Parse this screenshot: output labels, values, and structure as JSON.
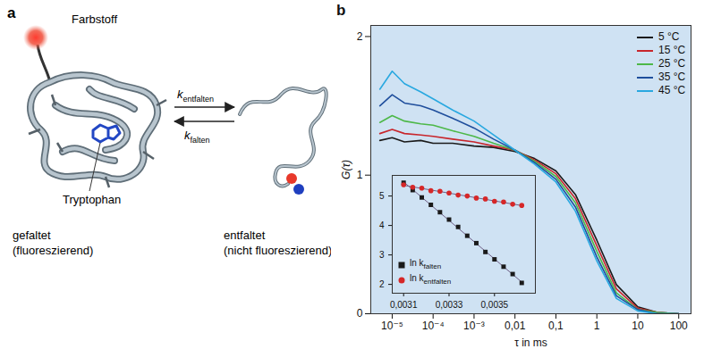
{
  "diagram": {
    "panel_label": "a",
    "dye": "Farbstoff",
    "tryptophan": "Tryptophan",
    "folded": [
      "gefaltet",
      "(fluoreszierend)"
    ],
    "unfolded": [
      "entfaltet",
      "(nicht fluoreszierend)"
    ],
    "rate_unfold": "kentfalten",
    "rate_fold": "kfalten"
  },
  "chart_data": [
    {
      "panel_label": "b",
      "type": "line",
      "x_label": "τ in ms",
      "y_label": "G(τ)",
      "log": "x",
      "xlim": [
        3e-06,
        200
      ],
      "ylim": [
        0,
        2.08
      ],
      "xticks": [
        {
          "value": 1e-05,
          "label": "10⁻⁵"
        },
        {
          "value": 0.0001,
          "label": "10⁻⁴"
        },
        {
          "value": 0.001,
          "label": "10⁻³"
        },
        {
          "value": 0.01,
          "label": "0,01"
        },
        {
          "value": 0.1,
          "label": "0,1"
        },
        1,
        10,
        100
      ],
      "yticks": [
        0,
        1,
        2
      ],
      "legend": "top-right",
      "x": [
        5e-06,
        1e-05,
        2e-05,
        5e-05,
        0.0001,
        0.0003,
        0.001,
        0.003,
        0.01,
        0.03,
        0.1,
        0.3,
        1,
        3,
        10,
        30,
        100
      ],
      "series": [
        {
          "name": "5 °C",
          "color": "#1a1a1a",
          "values": [
            1.25,
            1.27,
            1.24,
            1.25,
            1.23,
            1.23,
            1.21,
            1.2,
            1.17,
            1.12,
            1.03,
            0.86,
            0.53,
            0.21,
            0.05,
            0.01,
            0
          ]
        },
        {
          "name": "15 °C",
          "color": "#c8262c",
          "values": [
            1.3,
            1.33,
            1.3,
            1.29,
            1.28,
            1.26,
            1.24,
            1.21,
            1.18,
            1.11,
            1.01,
            0.83,
            0.49,
            0.18,
            0.04,
            0.01,
            0
          ]
        },
        {
          "name": "25 °C",
          "color": "#4db848",
          "values": [
            1.38,
            1.43,
            1.39,
            1.37,
            1.36,
            1.32,
            1.28,
            1.23,
            1.18,
            1.1,
            0.99,
            0.8,
            0.45,
            0.15,
            0.03,
            0.01,
            0
          ]
        },
        {
          "name": "35 °C",
          "color": "#1f4e9c",
          "values": [
            1.5,
            1.58,
            1.52,
            1.5,
            1.47,
            1.41,
            1.34,
            1.26,
            1.18,
            1.09,
            0.97,
            0.77,
            0.41,
            0.13,
            0.03,
            0,
            0
          ]
        },
        {
          "name": "45 °C",
          "color": "#29a8e0",
          "values": [
            1.62,
            1.75,
            1.66,
            1.6,
            1.55,
            1.47,
            1.39,
            1.29,
            1.18,
            1.08,
            0.95,
            0.74,
            0.38,
            0.11,
            0.02,
            0,
            0
          ]
        }
      ]
    },
    {
      "type": "scatter",
      "xlim": [
        0.00305,
        0.00368
      ],
      "ylim": [
        1.7,
        5.7
      ],
      "xticks": [
        {
          "value": 0.0031,
          "label": "0,0031"
        },
        {
          "value": 0.0033,
          "label": "0,0033"
        },
        {
          "value": 0.0035,
          "label": "0,0035"
        }
      ],
      "yticks": [
        2,
        3,
        4,
        5
      ],
      "legend": "bottom-left",
      "x": [
        0.0031,
        0.00314,
        0.00318,
        0.00322,
        0.00326,
        0.0033,
        0.00334,
        0.00338,
        0.00342,
        0.00346,
        0.0035,
        0.00354,
        0.00358,
        0.00362
      ],
      "series": [
        {
          "name": "ln kfalten",
          "color": "#1a1a1a",
          "marker": "square",
          "line_style": "solid",
          "values": [
            5.45,
            5.2,
            4.95,
            4.7,
            4.45,
            4.2,
            3.95,
            3.65,
            3.4,
            3.1,
            2.85,
            2.6,
            2.35,
            2.05
          ]
        },
        {
          "name": "ln kentfalten",
          "color": "#d62728",
          "marker": "circle",
          "line_style": "solid",
          "values": [
            5.38,
            5.3,
            5.27,
            5.18,
            5.16,
            5.1,
            5.03,
            5.0,
            4.93,
            4.9,
            4.82,
            4.8,
            4.72,
            4.68
          ]
        }
      ]
    }
  ]
}
